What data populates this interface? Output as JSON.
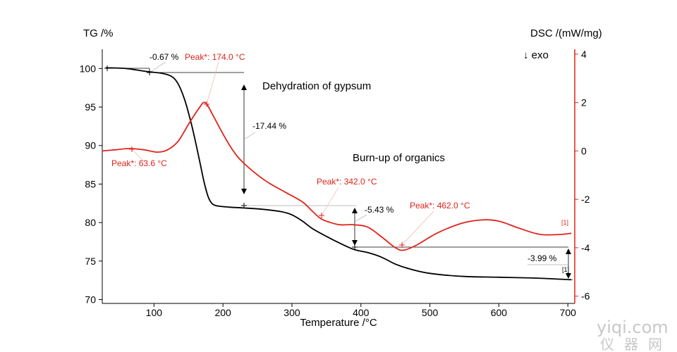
{
  "chart_data": {
    "type": "line",
    "xlabel": "Temperature /°C",
    "ylabel_left": "TG /%",
    "ylabel_right": "DSC /(mW/mg)",
    "exo_label": "↓ exo",
    "xlim": [
      25,
      710
    ],
    "ylim_left": [
      69.5,
      102.5
    ],
    "ylim_right": [
      -6.3,
      4.2
    ],
    "x_ticks": [
      100,
      200,
      300,
      400,
      500,
      600,
      700
    ],
    "y_ticks_left": [
      70,
      75,
      80,
      85,
      90,
      95,
      100
    ],
    "y_ticks_right": [
      -6,
      -4,
      -2,
      0,
      2,
      4
    ],
    "grid": false,
    "series": [
      {
        "axis": "left",
        "color": "#000000",
        "points": [
          [
            30,
            100.1
          ],
          [
            60,
            100.0
          ],
          [
            90,
            99.6
          ],
          [
            110,
            99.4
          ],
          [
            125,
            99.0
          ],
          [
            135,
            98.0
          ],
          [
            145,
            95.8
          ],
          [
            155,
            92.5
          ],
          [
            165,
            88.5
          ],
          [
            172,
            85.5
          ],
          [
            178,
            83.5
          ],
          [
            183,
            82.6
          ],
          [
            190,
            82.2
          ],
          [
            210,
            82.0
          ],
          [
            230,
            81.9
          ],
          [
            260,
            81.7
          ],
          [
            285,
            81.4
          ],
          [
            300,
            81.0
          ],
          [
            315,
            80.2
          ],
          [
            330,
            79.2
          ],
          [
            350,
            78.2
          ],
          [
            370,
            77.3
          ],
          [
            390,
            76.5
          ],
          [
            410,
            76.1
          ],
          [
            430,
            75.5
          ],
          [
            450,
            74.6
          ],
          [
            470,
            74.0
          ],
          [
            500,
            73.4
          ],
          [
            550,
            73.0
          ],
          [
            600,
            72.9
          ],
          [
            650,
            72.8
          ],
          [
            700,
            72.6
          ],
          [
            705,
            72.6
          ]
        ]
      },
      {
        "axis": "right",
        "color": "#e2231a",
        "points": [
          [
            25,
            0.0
          ],
          [
            45,
            0.05
          ],
          [
            63.6,
            0.1
          ],
          [
            85,
            0.05
          ],
          [
            105,
            -0.05
          ],
          [
            120,
            0.05
          ],
          [
            135,
            0.4
          ],
          [
            150,
            1.1
          ],
          [
            165,
            1.75
          ],
          [
            174,
            2.0
          ],
          [
            185,
            1.5
          ],
          [
            200,
            0.7
          ],
          [
            215,
            0.0
          ],
          [
            230,
            -0.5
          ],
          [
            260,
            -1.2
          ],
          [
            290,
            -1.7
          ],
          [
            315,
            -2.1
          ],
          [
            330,
            -2.5
          ],
          [
            342,
            -2.8
          ],
          [
            355,
            -2.95
          ],
          [
            370,
            -3.05
          ],
          [
            390,
            -3.05
          ],
          [
            410,
            -3.15
          ],
          [
            430,
            -3.55
          ],
          [
            450,
            -4.0
          ],
          [
            462,
            -4.1
          ],
          [
            480,
            -3.9
          ],
          [
            510,
            -3.4
          ],
          [
            545,
            -3.0
          ],
          [
            575,
            -2.85
          ],
          [
            600,
            -2.9
          ],
          [
            630,
            -3.2
          ],
          [
            660,
            -3.45
          ],
          [
            690,
            -3.45
          ],
          [
            705,
            -3.4
          ]
        ]
      }
    ],
    "annotations": {
      "dehydration": "Dehydration of gypsum",
      "burnup": "Burn-up of organics",
      "tg1": "-0.67 %",
      "tg2": "-17.44 %",
      "tg3": "-5.43 %",
      "tg4": "-3.99 %",
      "peak1": "Peak*:  63.6 °C",
      "peak2": "Peak*:  174.0 °C",
      "peak3": "Peak*:  342.0 °C",
      "peak4": "Peak*:  462.0 °C",
      "marker_black": "[1]",
      "marker_red": "[1]"
    }
  },
  "watermark": {
    "line1": "yiqi.com",
    "line2": "仪器网"
  }
}
